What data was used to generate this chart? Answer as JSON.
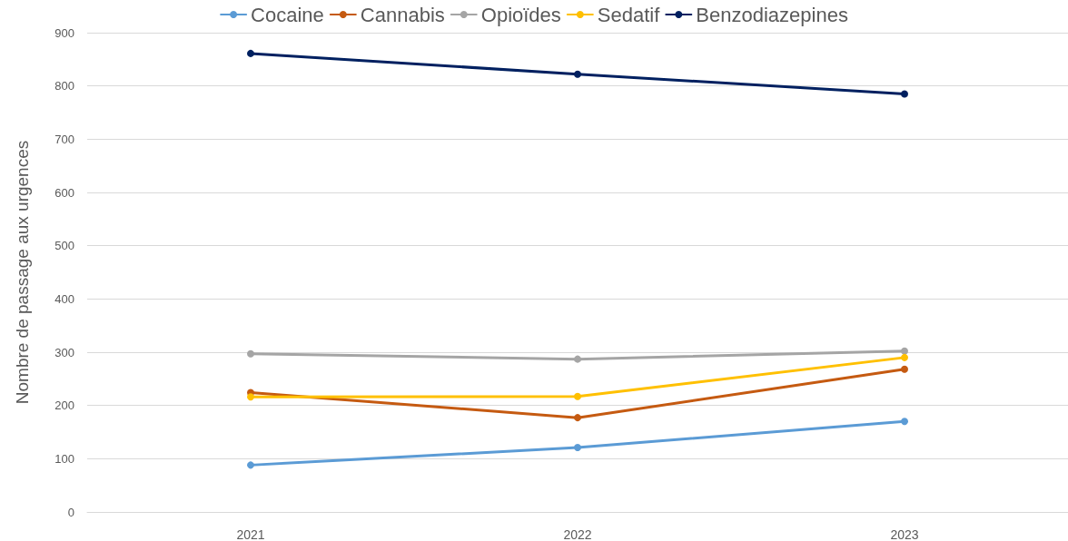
{
  "chart_data": {
    "type": "line",
    "ylabel": "Nombre de passage aux urgences",
    "categories": [
      "2021",
      "2022",
      "2023"
    ],
    "series": [
      {
        "name": "Cocaine",
        "color": "#5b9bd5",
        "values": [
          88,
          121,
          170
        ]
      },
      {
        "name": "Cannabis",
        "color": "#c55a11",
        "values": [
          224,
          177,
          268
        ]
      },
      {
        "name": "Opioïdes",
        "color": "#a5a5a5",
        "values": [
          297,
          287,
          302
        ]
      },
      {
        "name": "Sedatif",
        "color": "#ffc000",
        "values": [
          216,
          217,
          290
        ]
      },
      {
        "name": "Benzodiazepines",
        "color": "#002060",
        "values": [
          861,
          822,
          785
        ]
      }
    ],
    "ylim": [
      0,
      900
    ],
    "yticks": [
      0,
      100,
      200,
      300,
      400,
      500,
      600,
      700,
      800,
      900
    ],
    "grid": "y",
    "legend": "top",
    "marker": "circle",
    "line_style": "solid"
  }
}
